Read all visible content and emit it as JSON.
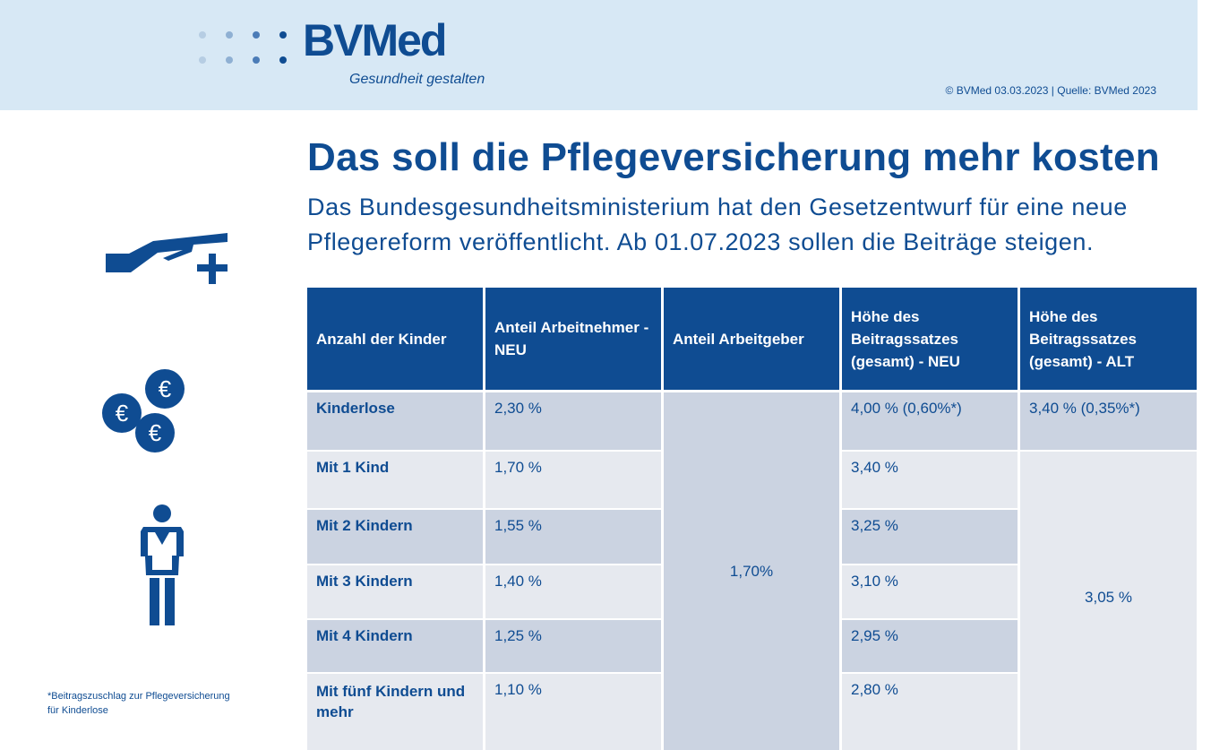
{
  "header": {
    "logo_text": "BVMed",
    "tagline": "Gesundheit gestalten",
    "copyright": "© BVMed 03.03.2023 | Quelle: BVMed 2023"
  },
  "title": "Das soll die Pflegeversicherung mehr kosten",
  "subtitle_line1": "Das Bundesgesundheitsministerium hat den Gesetzentwurf für eine neue",
  "subtitle_line2": "Pflegereform veröffentlicht. Ab 01.07.2023 sollen die Beiträge steigen.",
  "icons": [
    "hand-plus-icon",
    "euro-coins-icon",
    "person-icon"
  ],
  "colors": {
    "brand": "#0f4c92",
    "header_bg": "#d7e8f5",
    "row_dark": "#cbd3e1",
    "row_light": "#e6e9ef"
  },
  "table": {
    "headers": [
      "Anzahl der Kinder",
      "Anteil Arbeitnehmer - NEU",
      "Anteil Arbeitgeber",
      "Höhe des Beitragssatzes (gesamt) - NEU",
      "Höhe des Beitragssatzes (gesamt) - ALT"
    ],
    "rows": [
      {
        "kinder": "Kinderlose",
        "arbeitnehmer": "2,30 %",
        "gesamt_neu": "4,00 % (0,60%*)"
      },
      {
        "kinder": "Mit 1 Kind",
        "arbeitnehmer": "1,70 %",
        "gesamt_neu": "3,40 %"
      },
      {
        "kinder": "Mit 2 Kindern",
        "arbeitnehmer": "1,55 %",
        "gesamt_neu": "3,25 %"
      },
      {
        "kinder": "Mit 3 Kindern",
        "arbeitnehmer": "1,40 %",
        "gesamt_neu": "3,10 %"
      },
      {
        "kinder": "Mit 4 Kindern",
        "arbeitnehmer": "1,25 %",
        "gesamt_neu": "2,95 %"
      },
      {
        "kinder": "Mit fünf Kindern und mehr",
        "arbeitnehmer": "1,10 %",
        "gesamt_neu": "2,80 %"
      }
    ],
    "arbeitgeber": "1,70%",
    "alt_kinderlose": "3,40 % (0,35%*)",
    "alt_mit_kindern": "3,05 %"
  },
  "footnote_line1": "*Beitragszuschlag zur Pflegeversicherung",
  "footnote_line2": "für Kinderlose"
}
